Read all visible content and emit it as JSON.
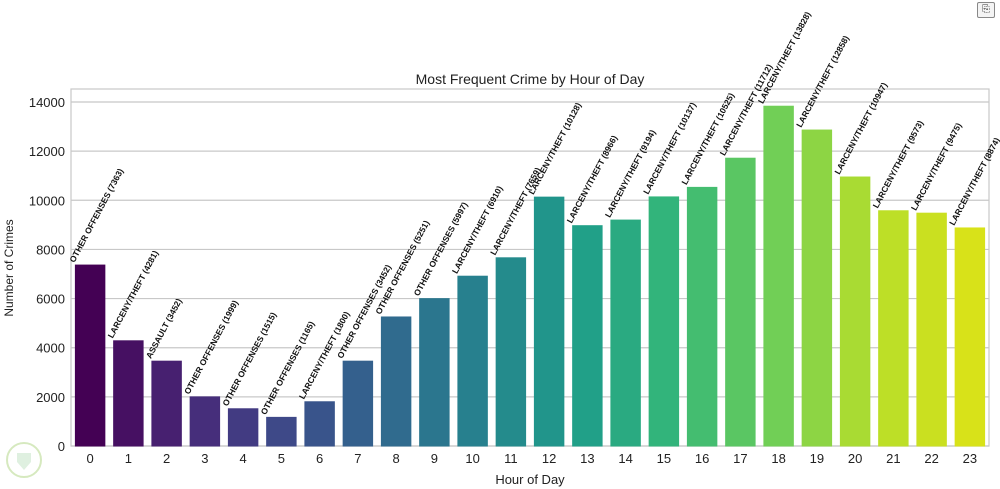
{
  "toolbar": {
    "copy_icon": "copy-icon"
  },
  "chart_data": {
    "type": "bar",
    "title": "Most Frequent Crime by Hour of Day",
    "xlabel": "Hour of Day",
    "ylabel": "Number of Crimes",
    "ylim": [
      0,
      14000
    ],
    "yticks": [
      0,
      2000,
      4000,
      6000,
      8000,
      10000,
      12000,
      14000
    ],
    "grid": true,
    "palette": "viridis",
    "categories": [
      "0",
      "1",
      "2",
      "3",
      "4",
      "5",
      "6",
      "7",
      "8",
      "9",
      "10",
      "11",
      "12",
      "13",
      "14",
      "15",
      "16",
      "17",
      "18",
      "19",
      "20",
      "21",
      "22",
      "23"
    ],
    "values": [
      7363,
      4281,
      3452,
      1999,
      1515,
      1165,
      1800,
      3452,
      5251,
      5997,
      6910,
      7659,
      10128,
      8966,
      9194,
      10137,
      10525,
      11712,
      13828,
      12858,
      10947,
      9573,
      9475,
      8874
    ],
    "crimes": [
      "OTHER OFFENSES",
      "LARCENY/THEFT",
      "ASSAULT",
      "OTHER OFFENSES",
      "OTHER OFFENSES",
      "OTHER OFFENSES",
      "LARCENY/THEFT",
      "OTHER OFFENSES",
      "OTHER OFFENSES",
      "OTHER OFFENSES",
      "LARCENY/THEFT",
      "LARCENY/THEFT",
      "LARCENY/THEFT",
      "LARCENY/THEFT",
      "LARCENY/THEFT",
      "LARCENY/THEFT",
      "LARCENY/THEFT",
      "LARCENY/THEFT",
      "LARCENY/THEFT",
      "LARCENY/THEFT",
      "LARCENY/THEFT",
      "LARCENY/THEFT",
      "LARCENY/THEFT",
      "LARCENY/THEFT"
    ],
    "data_labels": [
      "OTHER OFFENSES (7363)",
      "LARCENY/THEFT (4281)",
      "ASSAULT (3452)",
      "OTHER OFFENSES (1999)",
      "OTHER OFFENSES (1515)",
      "OTHER OFFENSES (1165)",
      "LARCENY/THEFT (1800)",
      "OTHER OFFENSES (3452)",
      "OTHER OFFENSES (5251)",
      "OTHER OFFENSES (5997)",
      "LARCENY/THEFT (6910)",
      "LARCENY/THEFT (7659)",
      "LARCENY/THEFT (10128)",
      "LARCENY/THEFT (8966)",
      "LARCENY/THEFT (9194)",
      "LARCENY/THEFT (10137)",
      "LARCENY/THEFT (10525)",
      "LARCENY/THEFT (11712)",
      "LARCENY/THEFT (13828)",
      "LARCENY/THEFT (12858)",
      "LARCENY/THEFT (10947)",
      "LARCENY/THEFT (9573)",
      "LARCENY/THEFT (9475)",
      "LARCENY/THEFT (8874)"
    ]
  }
}
